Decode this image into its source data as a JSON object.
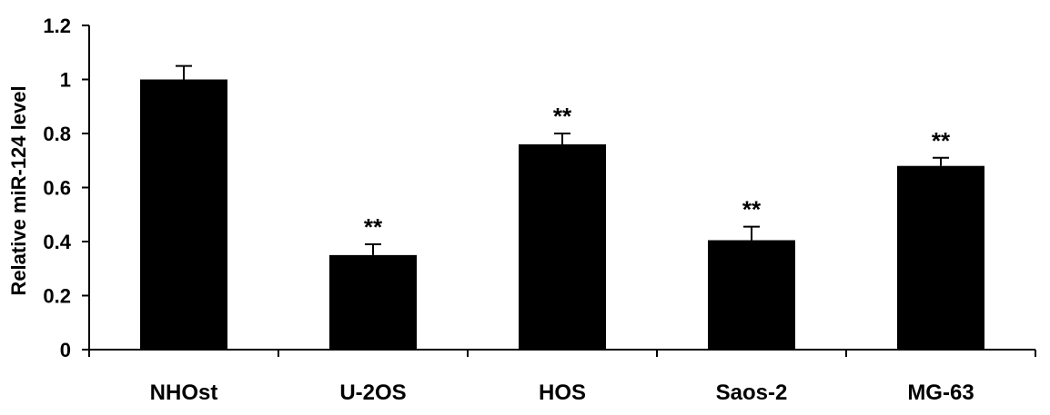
{
  "chart_data": {
    "type": "bar",
    "categories": [
      "NHOst",
      "U-2OS",
      "HOS",
      "Saos-2",
      "MG-63"
    ],
    "values": [
      1.0,
      0.35,
      0.76,
      0.405,
      0.68
    ],
    "errors": [
      0.05,
      0.04,
      0.04,
      0.05,
      0.03
    ],
    "significance": [
      "",
      "**",
      "**",
      "**",
      "**"
    ],
    "title": "",
    "xlabel": "",
    "ylabel": "Relative miR-124 level",
    "ylim": [
      0,
      1.2
    ],
    "yticks": [
      0,
      0.2,
      0.4,
      0.6,
      0.8,
      1,
      1.2
    ],
    "ytick_labels": [
      "0",
      "0.2",
      "0.4",
      "0.6",
      "0.8",
      "1",
      "1.2"
    ],
    "grid": false,
    "bar_color": "#000000"
  }
}
